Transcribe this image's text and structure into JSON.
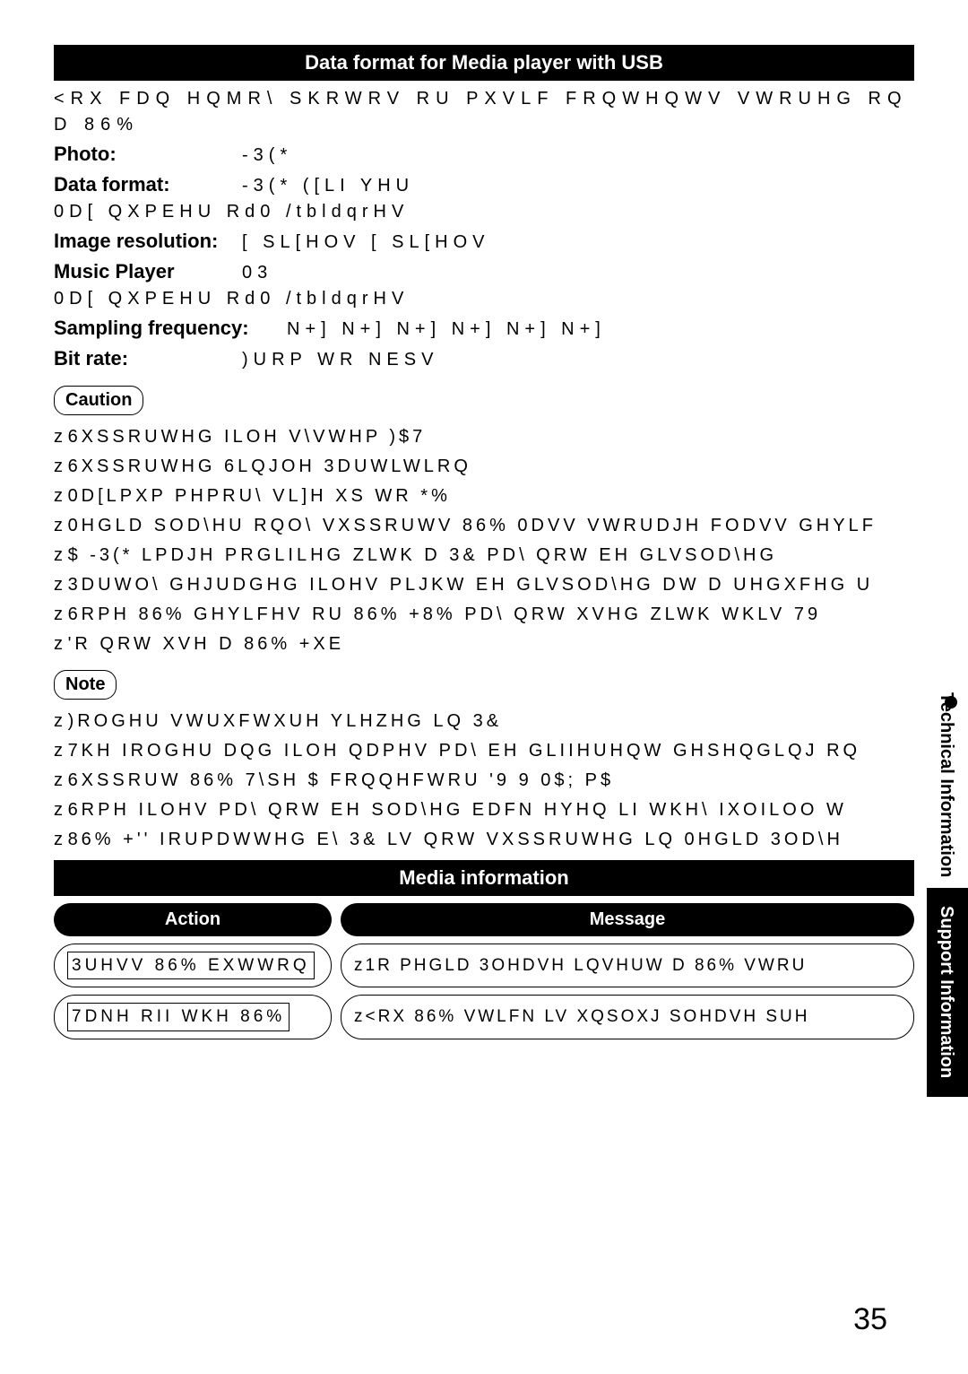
{
  "header1": "Data format for Media player with USB",
  "intro": "<RX FDQ HQMR\\ SKRWRV RU PXVLF FRQWHQWV VWRUHG RQ D 86%",
  "specs": [
    {
      "label": "Photo:",
      "value": "-3(*"
    },
    {
      "label": "Data format:",
      "value": "-3(* ([LI YHU"
    }
  ],
  "maxfiles1": "0D[ QXPEHU Rd0 /tbldqrHV",
  "specs2": [
    {
      "label": "Image resolution:",
      "value": "[     SL[HOV      [     SL[HOV"
    },
    {
      "label": "Music Player",
      "value": "03"
    }
  ],
  "maxfiles2": "0D[ QXPEHU Rd0 /tbldqrHV",
  "specs3": [
    {
      "label": "Sampling frequency:",
      "value": "N+]    N+]    N+]    N+]    N+]    N+]"
    },
    {
      "label": "Bit rate:",
      "value": ")URP   WR   NESV"
    }
  ],
  "caution_label": "Caution",
  "caution_bullets": [
    "6XSSRUWHG ILOH V\\VWHP )$7",
    "6XSSRUWHG 6LQJOH 3DUWLWLRQ",
    "0D[LPXP PHPRU\\ VL]H XS WR  *%",
    "0HGLD SOD\\HU RQO\\ VXSSRUWV 86% 0DVV VWRUDJH FODVV GHYLF",
    "$ -3(* LPDJH PRGLILHG ZLWK D 3& PD\\ QRW EH GLVSOD\\HG",
    "3DUWO\\ GHJUDGHG ILOHV PLJKW EH GLVSOD\\HG DW D UHGXFHG U",
    "6RPH 86% GHYLFHV RU 86% +8% PD\\ QRW XVHG ZLWK WKLV 79",
    "'R QRW XVH D 86% +XE"
  ],
  "note_label": "Note",
  "note_bullets": [
    ")ROGHU VWUXFWXUH YLHZHG LQ 3&",
    "7KH IROGHU DQG ILOH QDPHV PD\\ EH GLIIHUHQW GHSHQGLQJ RQ",
    "6XSSRUW 86%   7\\SH $ FRQQHFWRU  '9 9 0$;  P$",
    "6RPH ILOHV PD\\ QRW EH SOD\\HG EDFN HYHQ LI WKH\\ IXOILOO W",
    "86% +'' IRUPDWWHG E\\ 3& LV QRW VXSSRUWHG LQ 0HGLD 3OD\\H"
  ],
  "header2": "Media information",
  "col_action": "Action",
  "col_message": "Message",
  "row1_action": "3UHVV 86% EXWWRQ",
  "row1_msg_prefix": "z ",
  "row1_msg": "1R PHGLD  3OHDVH LQVHUW D 86% VWRU",
  "row2_action": "7DNH RII WKH 86%",
  "row2_msg_prefix": "z ",
  "row2_msg": "<RX 86% VWLFN LV XQSOXJ  SOHDVH SUH",
  "side1": "Technical Information",
  "side2": "Support Information",
  "page_number": "35"
}
